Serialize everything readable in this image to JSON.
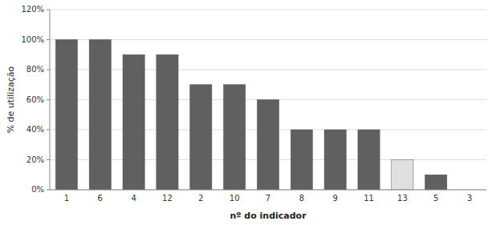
{
  "chart_data": {
    "type": "bar",
    "categories": [
      "1",
      "6",
      "4",
      "12",
      "2",
      "10",
      "7",
      "8",
      "9",
      "11",
      "13",
      "5",
      "3"
    ],
    "values": [
      100,
      100,
      90,
      90,
      70,
      70,
      60,
      40,
      40,
      40,
      20,
      10,
      0
    ],
    "colors": [
      "#606060",
      "#606060",
      "#606060",
      "#606060",
      "#606060",
      "#606060",
      "#606060",
      "#606060",
      "#606060",
      "#606060",
      "#e0e0e0",
      "#606060",
      "#606060"
    ],
    "xlabel": "nº do indicador",
    "ylabel": "% de utilização",
    "ylim": [
      0,
      120
    ],
    "yticks": [
      {
        "value": 0,
        "label": "0%"
      },
      {
        "value": 20,
        "label": "20%"
      },
      {
        "value": 40,
        "label": "40%"
      },
      {
        "value": 60,
        "label": "60%"
      },
      {
        "value": 80,
        "label": "80%"
      },
      {
        "value": 100,
        "label": "100%"
      },
      {
        "value": 120,
        "label": "120%"
      }
    ],
    "grid": true
  }
}
